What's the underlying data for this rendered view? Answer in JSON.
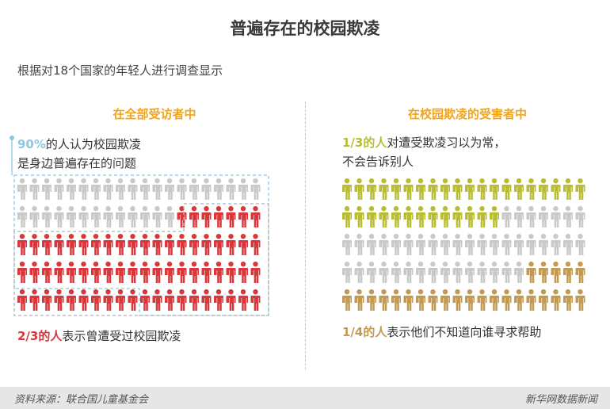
{
  "title": "普遍存在的校园欺凌",
  "subtitle": "根据对18个国家的年轻人进行调查显示",
  "colors": {
    "grey": "#c9c9c9",
    "red": "#d9373b",
    "olive": "#b9bd34",
    "tan": "#c29a52",
    "orange_title": "#f2a51a",
    "dash_blue": "#8ec6e0"
  },
  "chart_data": [
    {
      "type": "pictogram",
      "panel_title": "在全部受访者中",
      "annotations": [
        {
          "highlight": "90%",
          "text_line1": "的人认为校园欺凌",
          "text_line2": "是身边普遍存在的问题",
          "value": 0.9
        },
        {
          "highlight": "2/3的人",
          "text": "表示曾遭受过校园欺凌",
          "value": 0.6667
        }
      ],
      "rows": 5,
      "cols": 20,
      "icon_colors_by_row": [
        {
          "grey": 20,
          "red": 0
        },
        {
          "grey": 13,
          "red": 7
        },
        {
          "grey": 0,
          "red": 20
        },
        {
          "grey": 0,
          "red": 20
        },
        {
          "grey": 0,
          "red": 20
        }
      ]
    },
    {
      "type": "pictogram",
      "panel_title": "在校园欺凌的受害者中",
      "annotations": [
        {
          "highlight": "1/3的人",
          "text_line1": "对遭受欺凌习以为常，",
          "text_line2": "不会告诉别人",
          "value": 0.3333
        },
        {
          "highlight": "1/4的人",
          "text": "表示他们不知道向谁寻求帮助",
          "value": 0.25
        }
      ],
      "rows": 5,
      "cols": 20,
      "icon_colors_by_row": [
        {
          "olive": 20,
          "grey": 0,
          "tan": 0
        },
        {
          "olive": 13,
          "grey": 7,
          "tan": 0
        },
        {
          "olive": 0,
          "grey": 20,
          "tan": 0
        },
        {
          "olive": 0,
          "grey": 15,
          "tan": 5
        },
        {
          "olive": 0,
          "grey": 0,
          "tan": 20
        }
      ]
    }
  ],
  "footer": {
    "source": "资料来源：联合国儿童基金会",
    "brand": "新华网数据新闻"
  }
}
